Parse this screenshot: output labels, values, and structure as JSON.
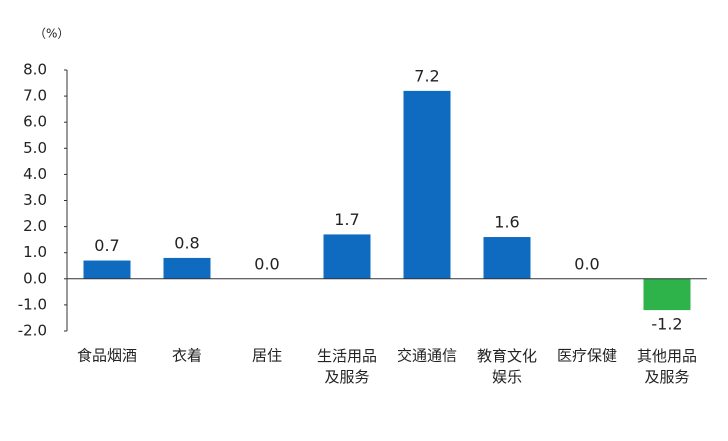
{
  "chart_data": {
    "type": "bar",
    "unit_label": "（%）",
    "categories": [
      "食品烟酒",
      "衣着",
      "居住",
      "生活用品\n及服务",
      "交通通信",
      "教育文化\n娱乐",
      "医疗保健",
      "其他用品\n及服务"
    ],
    "values": [
      0.7,
      0.8,
      0,
      1.7,
      7.2,
      1.6,
      0,
      -1.2
    ],
    "value_labels": [
      "0.7",
      "0.8",
      "0.0",
      "1.7",
      "7.2",
      "1.6",
      "0.0",
      "-1.2"
    ],
    "colors": [
      "#0f6bbf",
      "#0f6bbf",
      "#0f6bbf",
      "#0f6bbf",
      "#0f6bbf",
      "#0f6bbf",
      "#0f6bbf",
      "#2db34a"
    ],
    "ylim": [
      -2,
      8
    ],
    "yticks": [
      {
        "value": -2,
        "label": "-2.0"
      },
      {
        "value": -1,
        "label": "-1.0"
      },
      {
        "value": 0,
        "label": "0.0"
      },
      {
        "value": 1,
        "label": "1.0"
      },
      {
        "value": 2,
        "label": "2.0"
      },
      {
        "value": 3,
        "label": "3.0"
      },
      {
        "value": 4,
        "label": "4.0"
      },
      {
        "value": 5,
        "label": "5.0"
      },
      {
        "value": 6,
        "label": "6.0"
      },
      {
        "value": 7,
        "label": "7.0"
      },
      {
        "value": 8,
        "label": "8.0"
      }
    ],
    "grid": false
  }
}
